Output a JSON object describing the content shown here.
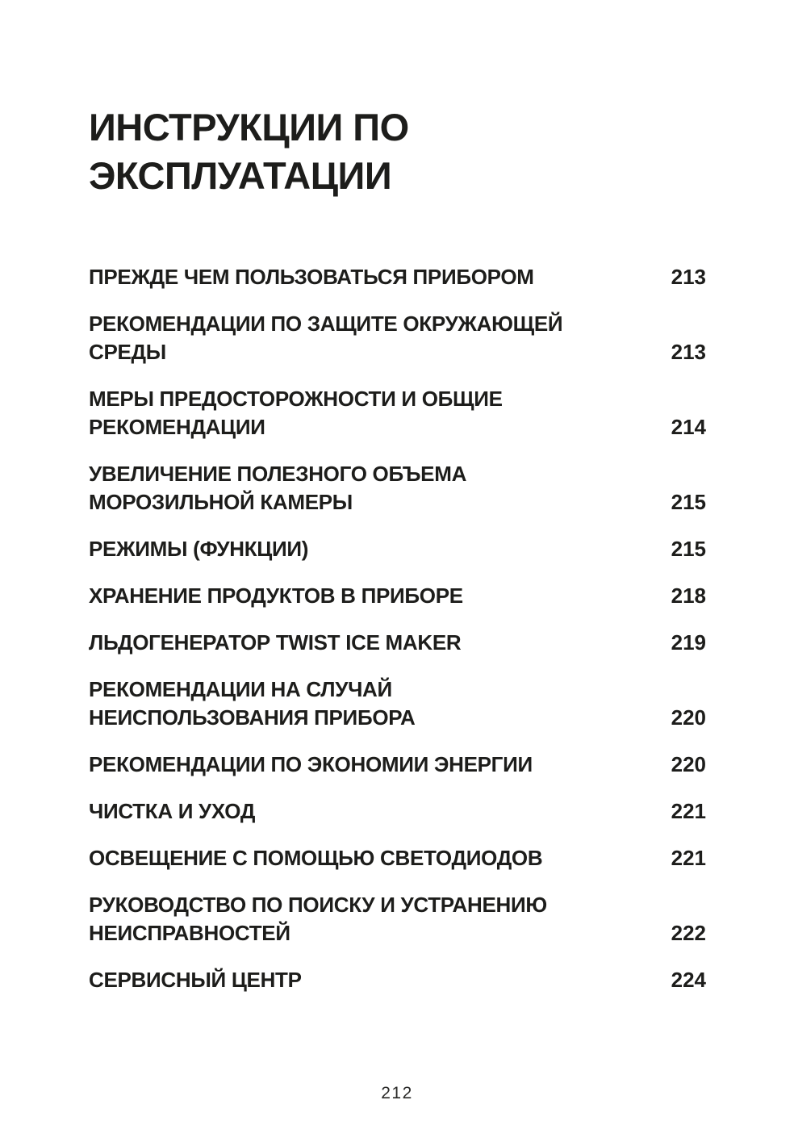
{
  "page": {
    "title": "ИНСТРУКЦИИ ПО\nЭКСПЛУАТАЦИИ",
    "footer_page_number": "212",
    "text_color": "#1d1d1b",
    "background_color": "#ffffff"
  },
  "toc": {
    "entries": [
      {
        "label": "ПРЕЖДЕ ЧЕМ ПОЛЬЗОВАТЬСЯ ПРИБОРОМ",
        "page": "213"
      },
      {
        "label": "РЕКОМЕНДАЦИИ ПО ЗАЩИТЕ ОКРУЖАЮЩЕЙ\nСРЕДЫ",
        "page": "213"
      },
      {
        "label": "МЕРЫ ПРЕДОСТОРОЖНОСТИ И ОБЩИЕ\nРЕКОМЕНДАЦИИ",
        "page": "214"
      },
      {
        "label": "УВЕЛИЧЕНИЕ ПОЛЕЗНОГО ОБЪЕМА\nМОРОЗИЛЬНОЙ КАМЕРЫ",
        "page": "215"
      },
      {
        "label": "РЕЖИМЫ (ФУНКЦИИ)",
        "page": "215"
      },
      {
        "label": "ХРАНЕНИЕ ПРОДУКТОВ В ПРИБОРЕ",
        "page": "218"
      },
      {
        "label": "ЛЬДОГЕНЕРАТОР TWIST ICE MAKER",
        "page": "219"
      },
      {
        "label": "РЕКОМЕНДАЦИИ НА СЛУЧАЙ\nНЕИСПОЛЬЗОВАНИЯ ПРИБОРА",
        "page": "220"
      },
      {
        "label": "РЕКОМЕНДАЦИИ ПО ЭКОНОМИИ ЭНЕРГИИ",
        "page": "220"
      },
      {
        "label": "ЧИСТКА И УХОД",
        "page": "221"
      },
      {
        "label": "ОСВЕЩЕНИЕ С ПОМОЩЬЮ СВЕТОДИОДОВ",
        "page": "221"
      },
      {
        "label": "РУКОВОДСТВО ПО ПОИСКУ И УСТРАНЕНИЮ\nНЕИСПРАВНОСТЕЙ",
        "page": "222"
      },
      {
        "label": "СЕРВИСНЫЙ ЦЕНТР",
        "page": "224"
      }
    ]
  }
}
